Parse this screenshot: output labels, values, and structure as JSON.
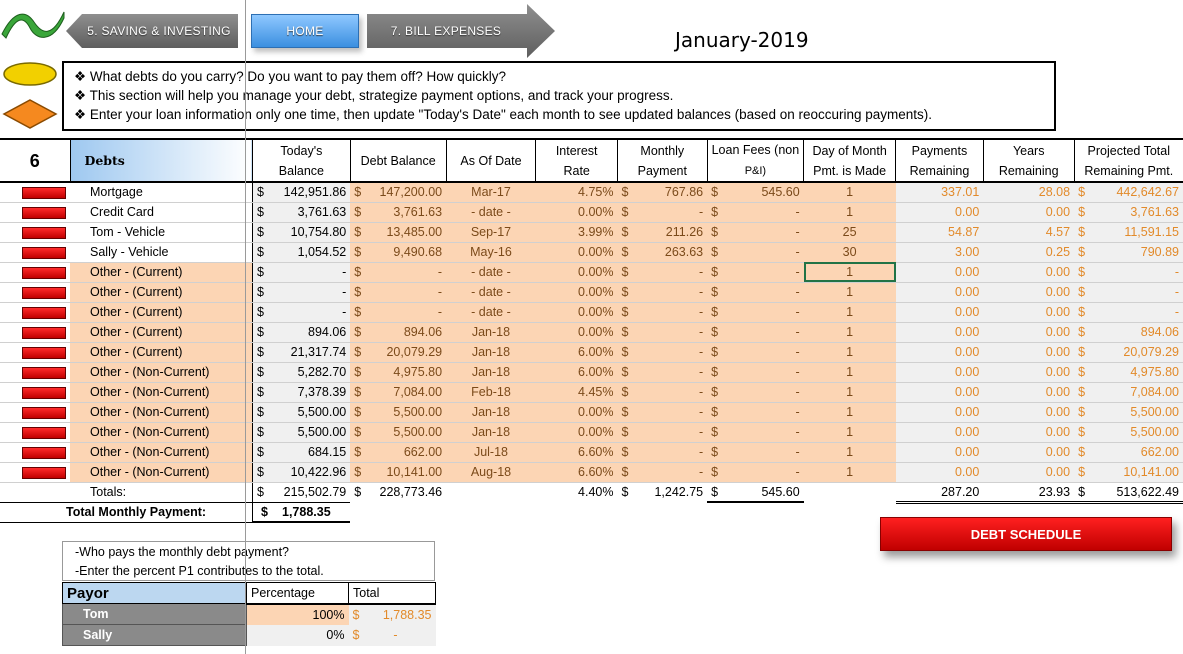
{
  "nav": {
    "prev_label": "5. SAVING & INVESTING",
    "home_label": "HOME",
    "next_label": "7. BILL EXPENSES"
  },
  "month": "January-2019",
  "info_lines": [
    "❖ What debts do you carry?  Do you want to pay them off?  How quickly?",
    "❖ This section will help you manage your debt, strategize payment options, and track your progress.",
    "❖ Enter your loan information only one time, then update \"Today's Date\" each month to see updated balances (based on reoccuring payments)."
  ],
  "section_number": "6",
  "section_title": "Debts",
  "headers": {
    "todays_balance": [
      "Today's",
      "Balance"
    ],
    "debt_balance": "Debt Balance",
    "as_of_date": "As Of Date",
    "interest_rate": [
      "Interest",
      "Rate"
    ],
    "monthly_payment": [
      "Monthly",
      "Payment"
    ],
    "loan_fees": [
      "Loan Fees (non",
      "P&I)"
    ],
    "day_of_month": [
      "Day of Month",
      "Pmt. is Made"
    ],
    "payments_remaining": [
      "Payments",
      "Remaining"
    ],
    "years_remaining": [
      "Years",
      "Remaining"
    ],
    "projected_total": [
      "Projected Total",
      "Remaining Pmt."
    ]
  },
  "rows": [
    {
      "name": "Mortgage",
      "bal": "142,951.86",
      "debt": "147,200.00",
      "date": "Mar-17",
      "rate": "4.75%",
      "pmt": "767.86",
      "fee": "545.60",
      "day": "1",
      "rem": "337.01",
      "yrs": "28.08",
      "tot": "442,642.67"
    },
    {
      "name": "Credit Card",
      "bal": "3,761.63",
      "debt": "3,761.63",
      "date": "- date -",
      "rate": "0.00%",
      "pmt": "-",
      "fee": "-",
      "day": "1",
      "rem": "0.00",
      "yrs": "0.00",
      "tot": "3,761.63"
    },
    {
      "name": "Tom - Vehicle",
      "bal": "10,754.80",
      "debt": "13,485.00",
      "date": "Sep-17",
      "rate": "3.99%",
      "pmt": "211.26",
      "fee": "-",
      "day": "25",
      "rem": "54.87",
      "yrs": "4.57",
      "tot": "11,591.15"
    },
    {
      "name": "Sally - Vehicle",
      "bal": "1,054.52",
      "debt": "9,490.68",
      "date": "May-16",
      "rate": "0.00%",
      "pmt": "263.63",
      "fee": "-",
      "day": "30",
      "rem": "3.00",
      "yrs": "0.25",
      "tot": "790.89"
    },
    {
      "name": "Other - (Current)",
      "bal": "-",
      "debt": "-",
      "date": "- date -",
      "rate": "0.00%",
      "pmt": "-",
      "fee": "-",
      "day": "1",
      "rem": "0.00",
      "yrs": "0.00",
      "tot": "-"
    },
    {
      "name": "Other - (Current)",
      "bal": "-",
      "debt": "-",
      "date": "- date -",
      "rate": "0.00%",
      "pmt": "-",
      "fee": "-",
      "day": "1",
      "rem": "0.00",
      "yrs": "0.00",
      "tot": "-"
    },
    {
      "name": "Other - (Current)",
      "bal": "-",
      "debt": "-",
      "date": "- date -",
      "rate": "0.00%",
      "pmt": "-",
      "fee": "-",
      "day": "1",
      "rem": "0.00",
      "yrs": "0.00",
      "tot": "-"
    },
    {
      "name": "Other - (Current)",
      "bal": "894.06",
      "debt": "894.06",
      "date": "Jan-18",
      "rate": "0.00%",
      "pmt": "-",
      "fee": "-",
      "day": "1",
      "rem": "0.00",
      "yrs": "0.00",
      "tot": "894.06"
    },
    {
      "name": "Other - (Current)",
      "bal": "21,317.74",
      "debt": "20,079.29",
      "date": "Jan-18",
      "rate": "6.00%",
      "pmt": "-",
      "fee": "-",
      "day": "1",
      "rem": "0.00",
      "yrs": "0.00",
      "tot": "20,079.29"
    },
    {
      "name": "Other - (Non-Current)",
      "bal": "5,282.70",
      "debt": "4,975.80",
      "date": "Jan-18",
      "rate": "6.00%",
      "pmt": "-",
      "fee": "-",
      "day": "1",
      "rem": "0.00",
      "yrs": "0.00",
      "tot": "4,975.80"
    },
    {
      "name": "Other - (Non-Current)",
      "bal": "7,378.39",
      "debt": "7,084.00",
      "date": "Feb-18",
      "rate": "4.45%",
      "pmt": "-",
      "fee": "-",
      "day": "1",
      "rem": "0.00",
      "yrs": "0.00",
      "tot": "7,084.00"
    },
    {
      "name": "Other - (Non-Current)",
      "bal": "5,500.00",
      "debt": "5,500.00",
      "date": "Jan-18",
      "rate": "0.00%",
      "pmt": "-",
      "fee": "-",
      "day": "1",
      "rem": "0.00",
      "yrs": "0.00",
      "tot": "5,500.00"
    },
    {
      "name": "Other - (Non-Current)",
      "bal": "5,500.00",
      "debt": "5,500.00",
      "date": "Jan-18",
      "rate": "0.00%",
      "pmt": "-",
      "fee": "-",
      "day": "1",
      "rem": "0.00",
      "yrs": "0.00",
      "tot": "5,500.00"
    },
    {
      "name": "Other - (Non-Current)",
      "bal": "684.15",
      "debt": "662.00",
      "date": "Jul-18",
      "rate": "6.60%",
      "pmt": "-",
      "fee": "-",
      "day": "1",
      "rem": "0.00",
      "yrs": "0.00",
      "tot": "662.00"
    },
    {
      "name": "Other - (Non-Current)",
      "bal": "10,422.96",
      "debt": "10,141.00",
      "date": "Aug-18",
      "rate": "6.60%",
      "pmt": "-",
      "fee": "-",
      "day": "1",
      "rem": "0.00",
      "yrs": "0.00",
      "tot": "10,141.00"
    }
  ],
  "totals": {
    "label": "Totals:",
    "bal": "215,502.79",
    "debt": "228,773.46",
    "rate": "4.40%",
    "pmt": "1,242.75",
    "fee": "545.60",
    "rem": "287.20",
    "yrs": "23.93",
    "tot": "513,622.49"
  },
  "monthly": {
    "label": "Total Monthly Payment:",
    "value": "1,788.35"
  },
  "currency": "$",
  "schedule_button": "DEBT SCHEDULE",
  "payor_note": [
    "-Who pays the monthly debt payment?",
    "-Enter the percent P1 contributes to the total."
  ],
  "payor_table": {
    "headers": [
      "Payor",
      "Percentage",
      "Total"
    ],
    "rows": [
      {
        "name": "Tom",
        "pct": "100%",
        "total": "1,788.35"
      },
      {
        "name": "Sally",
        "pct": "0%",
        "total": "-"
      }
    ]
  },
  "colors": {
    "input_fill": "#fcd5b4",
    "accent_red": "#e00000",
    "home_blue": "#4a9ce8",
    "orange_text": "#e28a2a"
  }
}
